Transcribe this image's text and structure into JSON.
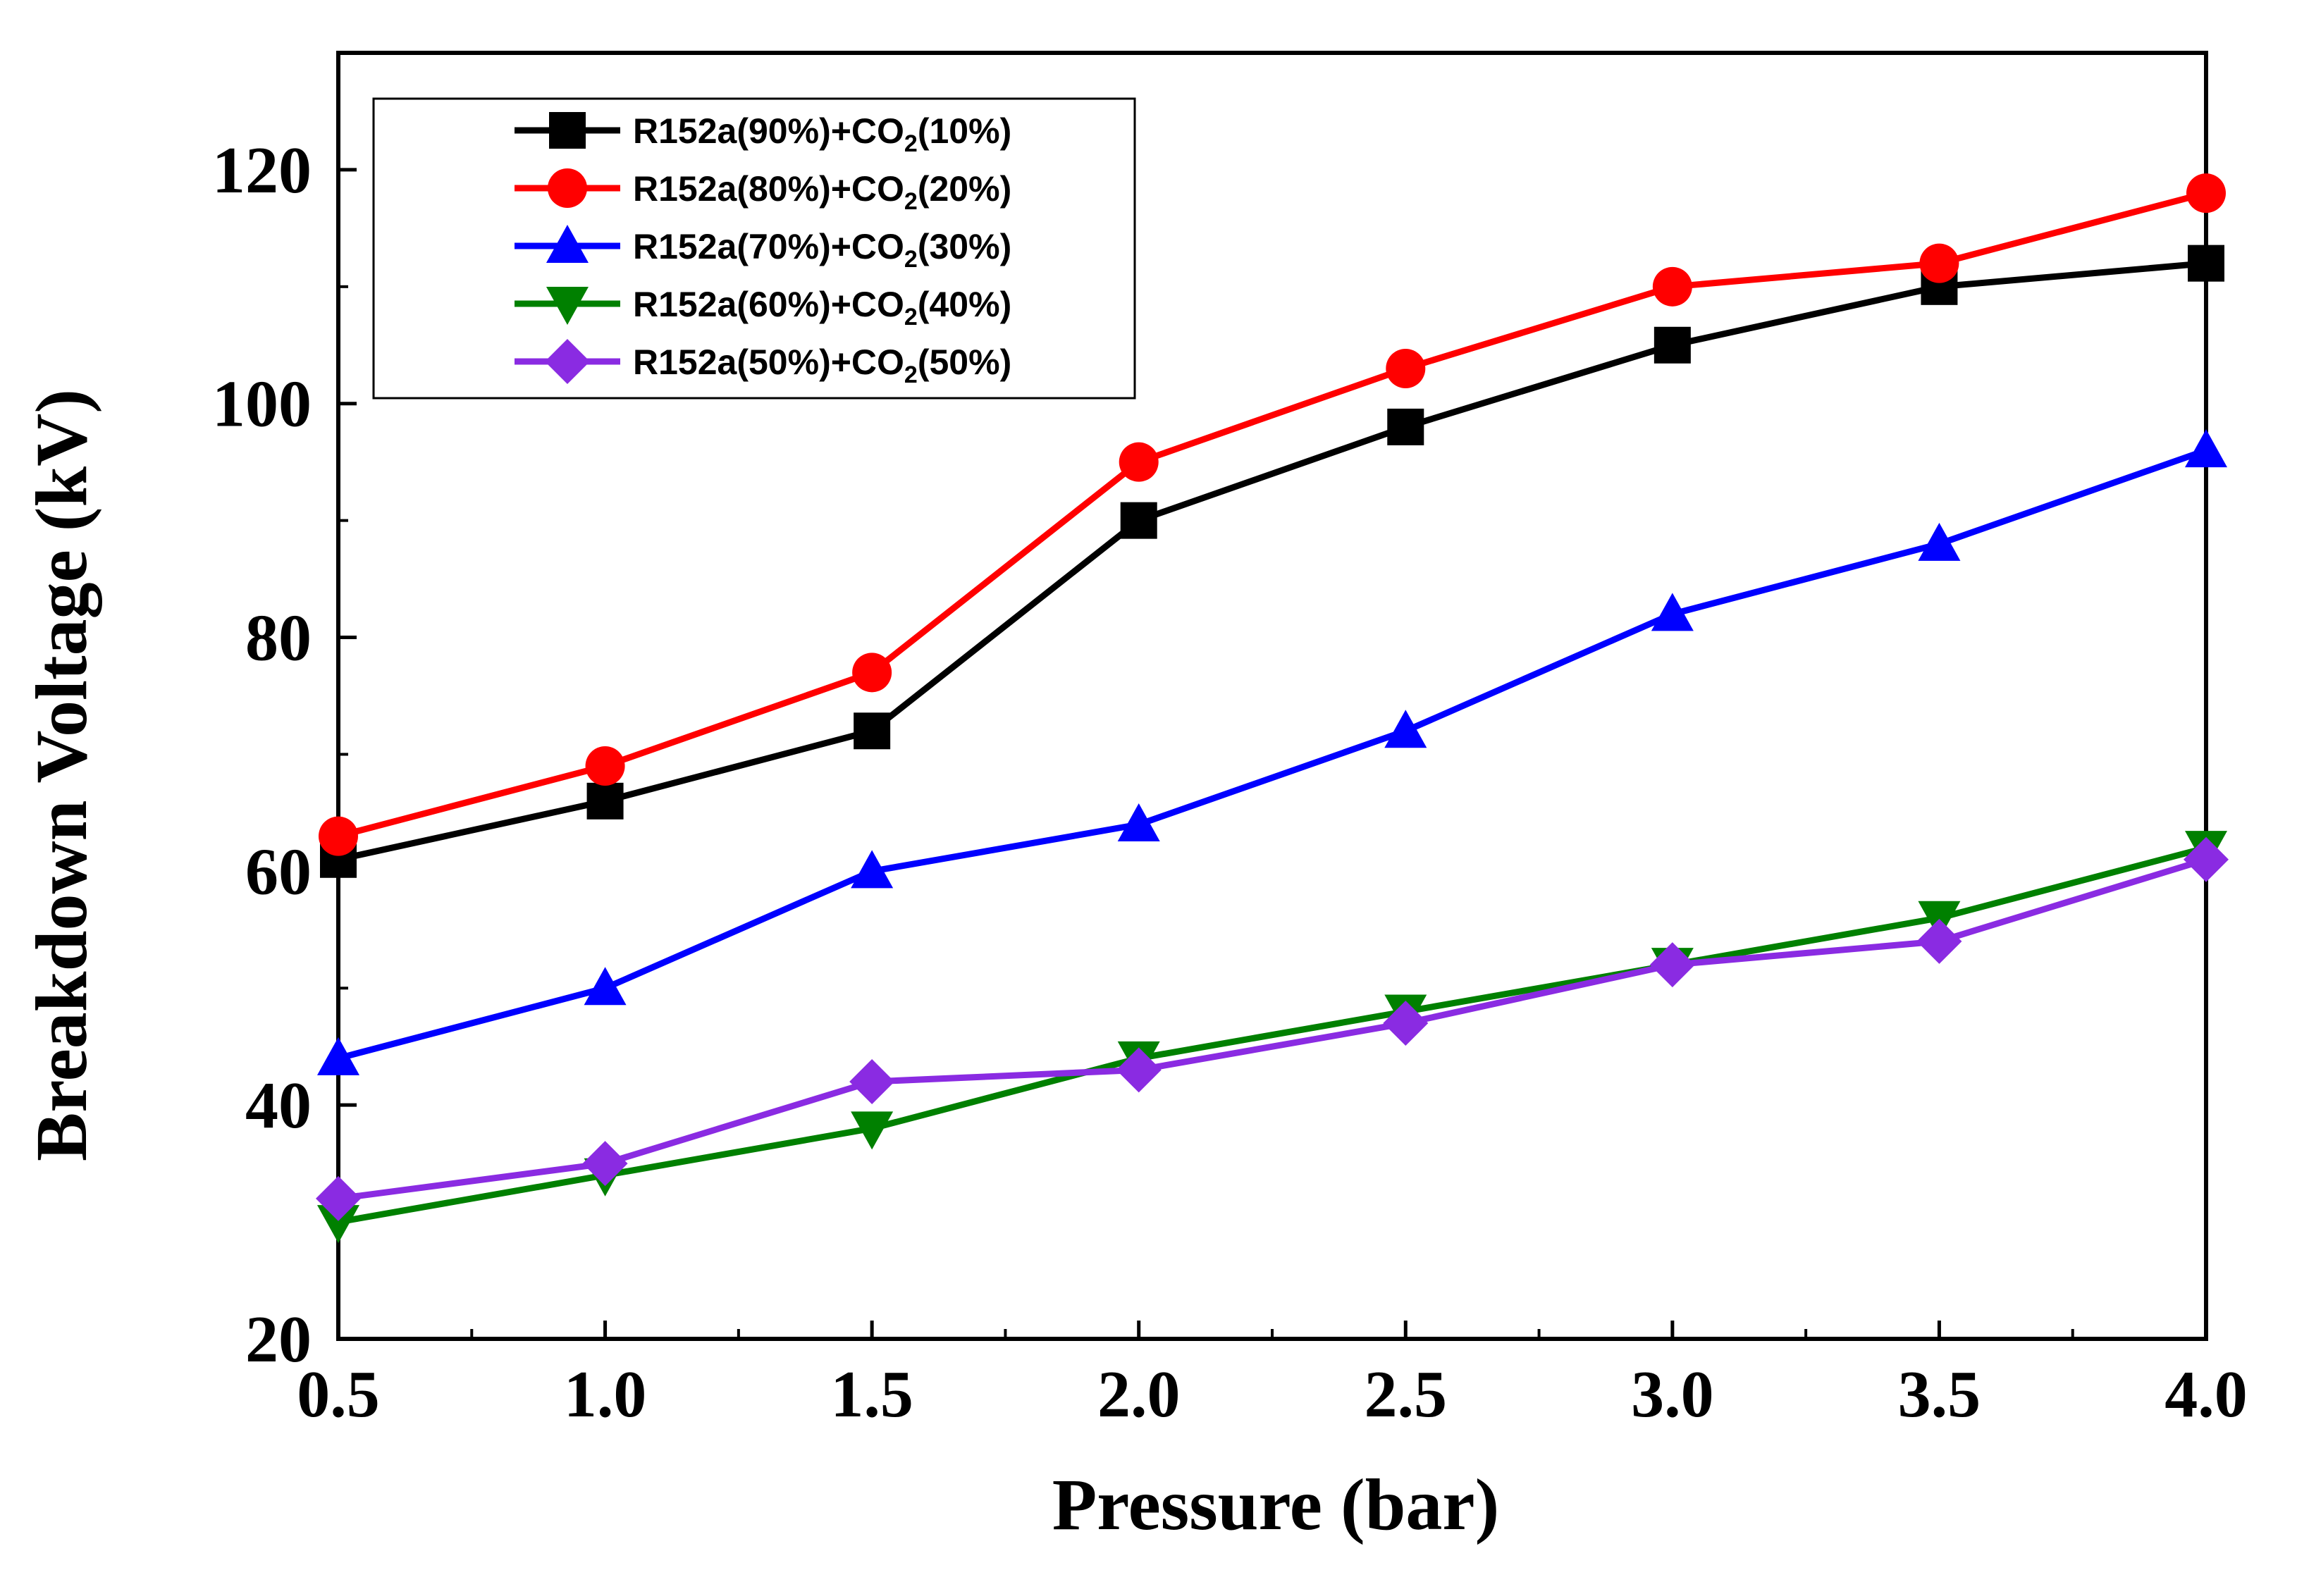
{
  "chart_data": {
    "type": "line",
    "xlabel": "Pressure (bar)",
    "ylabel": "Breakdown Voltage (kV)",
    "xlim": [
      0.5,
      4.0
    ],
    "ylim": [
      20,
      130
    ],
    "xticks": [
      0.5,
      1.0,
      1.5,
      2.0,
      2.5,
      3.0,
      3.5,
      4.0
    ],
    "xtick_labels": [
      "0.5",
      "1.0",
      "1.5",
      "2.0",
      "2.5",
      "3.0",
      "3.5",
      "4.0"
    ],
    "yticks": [
      20,
      40,
      60,
      80,
      100,
      120
    ],
    "ytick_labels": [
      "20",
      "40",
      "60",
      "80",
      "100",
      "120"
    ],
    "legend_position": "top-left",
    "x": [
      0.5,
      1.0,
      1.5,
      2.0,
      2.5,
      3.0,
      3.5,
      4.0
    ],
    "series": [
      {
        "name": "R152a(90%)+CO2(10%)",
        "label_main": "R152a(90%)+CO",
        "label_sub": "2",
        "label_tail": "(10%)",
        "color": "#000000",
        "marker": "square",
        "values": [
          61,
          66,
          72,
          90,
          98,
          105,
          110,
          112
        ]
      },
      {
        "name": "R152a(80%)+CO2(20%)",
        "label_main": "R152a(80%)+CO",
        "label_sub": "2",
        "label_tail": "(20%)",
        "color": "#ff0000",
        "marker": "circle",
        "values": [
          63,
          69,
          77,
          95,
          103,
          110,
          112,
          118
        ]
      },
      {
        "name": "R152a(70%)+CO2(30%)",
        "label_main": "R152a(70%)+CO",
        "label_sub": "2",
        "label_tail": "(30%)",
        "color": "#0000ff",
        "marker": "triangle-up",
        "values": [
          44,
          50,
          60,
          64,
          72,
          82,
          88,
          96
        ]
      },
      {
        "name": "R152a(60%)+CO2(40%)",
        "label_main": "R152a(60%)+CO",
        "label_sub": "2",
        "label_tail": "(40%)",
        "color": "#008000",
        "marker": "triangle-down",
        "values": [
          30,
          34,
          38,
          44,
          48,
          52,
          56,
          62
        ]
      },
      {
        "name": "R152a(50%)+CO2(50%)",
        "label_main": "R152a(50%)+CO",
        "label_sub": "2",
        "label_tail": "(50%)",
        "color": "#8a2be2",
        "marker": "diamond",
        "values": [
          32,
          35,
          42,
          43,
          47,
          52,
          54,
          61
        ]
      }
    ]
  }
}
